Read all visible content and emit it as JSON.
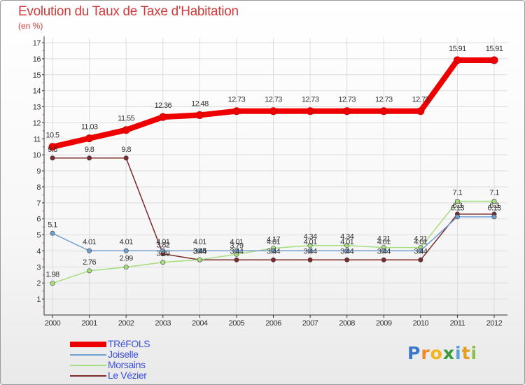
{
  "chart_data": {
    "type": "line",
    "title": "Evolution du Taux de Taxe d'Habitation",
    "subtitle": "(en %)",
    "xlabel": "",
    "ylabel": "",
    "ylim": [
      0,
      17
    ],
    "yticks": [
      "1",
      "2",
      "3",
      "4",
      "5",
      "6",
      "7",
      "8",
      "9",
      "10",
      "11",
      "12",
      "13",
      "14",
      "15",
      "16",
      "17"
    ],
    "categories": [
      "2000",
      "2001",
      "2002",
      "2003",
      "2004",
      "2005",
      "2006",
      "2007",
      "2008",
      "2009",
      "2010",
      "2011",
      "2012"
    ],
    "series": [
      {
        "name": "TRéFOLS",
        "color": "#ee0000",
        "values": [
          10.5,
          11.03,
          11.55,
          12.36,
          12.48,
          12.73,
          12.73,
          12.73,
          12.73,
          12.73,
          12.73,
          15.91,
          15.91
        ],
        "labels": [
          "10.5",
          "11.03",
          "11.55",
          "12.36",
          "12.48",
          "12.73",
          "12.73",
          "12.73",
          "12.73",
          "12.73",
          "12.73",
          "15.91",
          "15.91"
        ]
      },
      {
        "name": "Joiselle",
        "color": "#6e9fcf",
        "values": [
          5.1,
          4.01,
          4.01,
          4.01,
          4.01,
          4.01,
          4.01,
          4.01,
          4.01,
          4.01,
          4.01,
          6.13,
          6.13
        ],
        "labels": [
          "5.1",
          "4.01",
          "4.01",
          "4.01",
          "4.01",
          "4.01",
          "4.01",
          "4.01",
          "4.01",
          "4.01",
          "4.01",
          "6.13",
          "6.13"
        ]
      },
      {
        "name": "Morsains",
        "color": "#a6dd7e",
        "values": [
          1.98,
          2.76,
          2.99,
          3.29,
          3.45,
          3.79,
          4.17,
          4.34,
          4.34,
          4.21,
          4.21,
          7.1,
          7.1
        ],
        "labels": [
          "1.98",
          "2.76",
          "2.99",
          "3.29",
          "3.45",
          "3.79",
          "4.17",
          "4.34",
          "4.34",
          "4.21",
          "4.21",
          "7.1",
          "7.1"
        ]
      },
      {
        "name": "Le Vézier",
        "color": "#7a2a2a",
        "values": [
          9.8,
          9.8,
          9.8,
          3.82,
          3.44,
          3.44,
          3.44,
          3.44,
          3.44,
          3.44,
          3.44,
          6.3,
          6.3
        ],
        "labels": [
          "9.8",
          "9.8",
          "9.8",
          "3.82",
          "3.44",
          "3.44",
          "3.44",
          "3.44",
          "3.44",
          "3.44",
          "3.44",
          "6.3",
          "6.3"
        ]
      }
    ],
    "legend_position": "bottom-left"
  },
  "logo": {
    "letters": [
      "P",
      "r",
      "o",
      "x",
      "i",
      "t",
      "i"
    ],
    "colors": [
      "#3a78c8",
      "#f08a24",
      "#f2b51c",
      "#3a9a3a",
      "#5aa0d8",
      "#e0a020",
      "#8ac04a"
    ]
  }
}
